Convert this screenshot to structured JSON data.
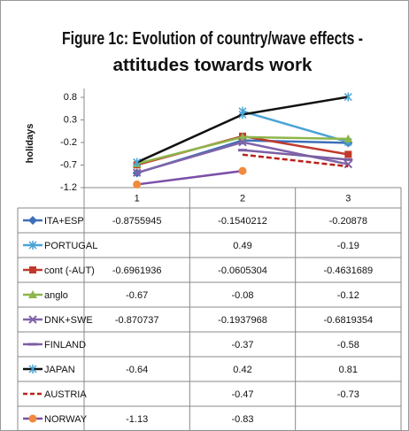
{
  "chart_data": {
    "type": "line",
    "title": "Figure 1c: Evolution of country/wave effects - attitudes towards work",
    "y_label": "holidays",
    "categories": [
      "1",
      "2",
      "3"
    ],
    "ylim": [
      -1.2,
      0.8
    ],
    "yticks": [
      0.8,
      0.3,
      -0.2,
      -0.7,
      -1.2
    ],
    "grid": false,
    "legend": "table",
    "series": [
      {
        "name": "ITA+ESP",
        "color": "#3c6fb8",
        "marker": "diamond",
        "dashed": false,
        "values": [
          -0.8755945,
          -0.1540212,
          -0.20878
        ]
      },
      {
        "name": "PORTUGAL",
        "color": "#4aa3d6",
        "marker": "star",
        "dashed": false,
        "values": [
          null,
          0.49,
          -0.19
        ]
      },
      {
        "name": "cont (-AUT)",
        "color": "#c0392b",
        "marker": "square",
        "dashed": false,
        "values": [
          -0.6961936,
          -0.0605304,
          -0.4631689
        ]
      },
      {
        "name": "anglo",
        "color": "#8db54a",
        "marker": "triangle",
        "dashed": false,
        "values": [
          -0.67,
          -0.08,
          -0.12
        ]
      },
      {
        "name": "DNK+SWE",
        "color": "#8063a8",
        "marker": "x",
        "dashed": false,
        "values": [
          -0.870737,
          -0.1937968,
          -0.6819354
        ]
      },
      {
        "name": "FINLAND",
        "color": "#7b5fa3",
        "marker": "dash",
        "dashed": false,
        "values": [
          null,
          -0.37,
          -0.58
        ]
      },
      {
        "name": "JAPAN",
        "color": "#111111",
        "marker": "asterisk",
        "marker_color": "#4aa3d6",
        "dashed": false,
        "values": [
          -0.64,
          0.42,
          0.81
        ]
      },
      {
        "name": "AUSTRIA",
        "color": "#b8221c",
        "marker": "none",
        "dashed": true,
        "values": [
          null,
          -0.47,
          -0.73
        ]
      },
      {
        "name": "NORWAY",
        "color": "#7b4fa8",
        "marker": "circle",
        "marker_color": "#f08a3c",
        "dashed": false,
        "values": [
          -1.13,
          -0.83,
          null
        ]
      }
    ]
  }
}
